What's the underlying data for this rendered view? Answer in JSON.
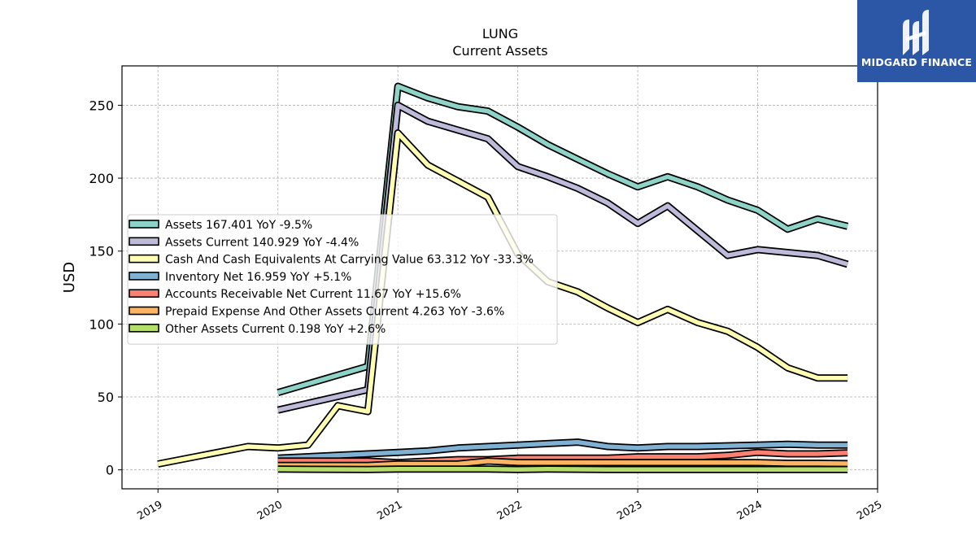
{
  "chart_data": {
    "type": "line",
    "title": "LUNG",
    "subtitle": "Current  Assets",
    "ylabel": "USD",
    "xlabel": "",
    "xlim": [
      2018.7,
      2025.0
    ],
    "ylim": [
      -13,
      277
    ],
    "x_ticks": [
      "2019",
      "2020",
      "2021",
      "2022",
      "2023",
      "2024",
      "2025"
    ],
    "y_ticks": [
      "0",
      "50",
      "100",
      "150",
      "200",
      "250"
    ],
    "grid": true,
    "legend_position": "center-left",
    "series": [
      {
        "name": "Assets  167.401 YoY -9.5%",
        "color": "#8dd3c7",
        "x": [
          2020.0,
          2020.75,
          2021.0,
          2021.25,
          2021.5,
          2021.75,
          2022.0,
          2022.25,
          2022.5,
          2022.75,
          2023.0,
          2023.25,
          2023.5,
          2023.75,
          2024.0,
          2024.25,
          2024.5,
          2024.75
        ],
        "y": [
          53,
          71,
          263,
          255,
          249,
          246,
          235,
          223,
          213,
          203,
          194,
          201,
          194,
          185,
          178,
          165,
          172,
          167
        ]
      },
      {
        "name": "Assets Current  140.929 YoY -4.4%",
        "color": "#bebada",
        "x": [
          2020.0,
          2020.75,
          2021.0,
          2021.25,
          2021.5,
          2021.75,
          2022.0,
          2022.25,
          2022.5,
          2022.75,
          2023.0,
          2023.25,
          2023.5,
          2023.75,
          2024.0,
          2024.25,
          2024.5,
          2024.75
        ],
        "y": [
          41,
          55,
          250,
          239,
          233,
          227,
          208,
          201,
          193,
          183,
          169,
          181,
          164,
          147,
          151,
          149,
          147,
          141
        ]
      },
      {
        "name": "Cash And Cash Equivalents At Carrying Value  63.312 YoY -33.3%",
        "color": "#ffffb3",
        "x": [
          2019.0,
          2019.75,
          2020.0,
          2020.25,
          2020.5,
          2020.75,
          2021.0,
          2021.25,
          2021.5,
          2021.75,
          2022.0,
          2022.25,
          2022.5,
          2022.75,
          2023.0,
          2023.25,
          2023.5,
          2023.75,
          2024.0,
          2024.25,
          2024.5,
          2024.75
        ],
        "y": [
          4,
          16,
          15,
          17,
          44,
          40,
          231,
          209,
          198,
          187,
          148,
          129,
          122,
          111,
          101,
          110,
          101,
          95,
          84,
          70,
          63,
          63
        ]
      },
      {
        "name": "Inventory Net  16.959 YoY +5.1%",
        "color": "#80b1d3",
        "x": [
          2020.0,
          2020.75,
          2021.0,
          2021.25,
          2021.5,
          2021.75,
          2022.0,
          2022.25,
          2022.5,
          2022.75,
          2023.0,
          2023.25,
          2023.5,
          2023.75,
          2024.0,
          2024.25,
          2024.5,
          2024.75
        ],
        "y": [
          8,
          11,
          12,
          13,
          15,
          16,
          17,
          18,
          19,
          16,
          15,
          16,
          16,
          16.5,
          17,
          17.5,
          17,
          17
        ]
      },
      {
        "name": "Accounts Receivable Net Current  11.67 YoY +15.6%",
        "color": "#fb8072",
        "x": [
          2020.0,
          2020.75,
          2021.0,
          2021.25,
          2021.5,
          2021.75,
          2022.0,
          2022.25,
          2022.5,
          2022.75,
          2023.0,
          2023.25,
          2023.5,
          2023.75,
          2024.0,
          2024.25,
          2024.5,
          2024.75
        ],
        "y": [
          6,
          6,
          5,
          6,
          7,
          7,
          8,
          8,
          8,
          8,
          9,
          9,
          9,
          10,
          12,
          11,
          11,
          11.7
        ]
      },
      {
        "name": "Prepaid Expense And Other Assets Current  4.263 YoY -3.6%",
        "color": "#fdb462",
        "x": [
          2020.0,
          2020.75,
          2021.0,
          2021.25,
          2021.5,
          2021.75,
          2022.0,
          2022.25,
          2022.5,
          2022.75,
          2023.0,
          2023.25,
          2023.5,
          2023.75,
          2024.0,
          2024.25,
          2024.5,
          2024.75
        ],
        "y": [
          3,
          3,
          4,
          4,
          4,
          6,
          5,
          5,
          5,
          5,
          5,
          5,
          5,
          5,
          5,
          4.5,
          4.5,
          4.3
        ]
      },
      {
        "name": "Other Assets Current  0.198 YoY +2.6%",
        "color": "#b3de69",
        "x": [
          2020.0,
          2020.75,
          2021.0,
          2021.25,
          2021.5,
          2021.75,
          2022.0,
          2022.25,
          2022.5,
          2022.75,
          2023.0,
          2023.25,
          2023.5,
          2023.75,
          2024.0,
          2024.25,
          2024.5,
          2024.75
        ],
        "y": [
          0.5,
          0.3,
          0.5,
          0.5,
          0.5,
          0.5,
          0.3,
          0.5,
          0.4,
          0.3,
          0.3,
          0.3,
          0.2,
          0.2,
          0.3,
          0.2,
          0.2,
          0.2
        ]
      }
    ]
  },
  "logo": {
    "text": "MIDGARD FINANCE",
    "background": "#2b57a6"
  }
}
